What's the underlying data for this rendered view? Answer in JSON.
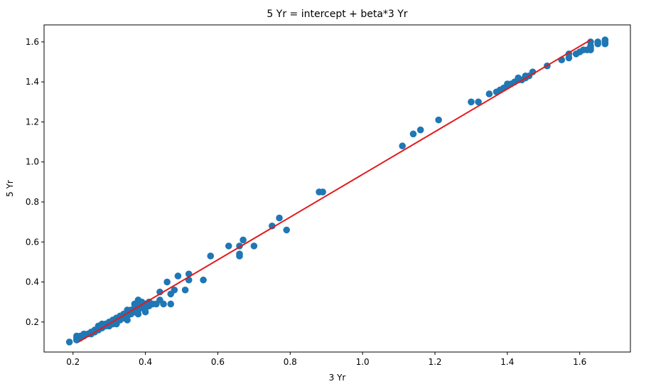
{
  "chart_data": {
    "type": "scatter",
    "title": "5 Yr = intercept + beta*3 Yr",
    "xlabel": "3 Yr",
    "ylabel": "5 Yr",
    "xlim": [
      0.12,
      1.74
    ],
    "ylim": [
      0.05,
      1.685
    ],
    "xticks": [
      0.2,
      0.4,
      0.6,
      0.8,
      1.0,
      1.2,
      1.4,
      1.6
    ],
    "xtick_labels": [
      "0.2",
      "0.4",
      "0.6",
      "0.8",
      "1.0",
      "1.2",
      "1.4",
      "1.6"
    ],
    "yticks": [
      0.2,
      0.4,
      0.6,
      0.8,
      1.0,
      1.2,
      1.4,
      1.6
    ],
    "ytick_labels": [
      "0.2",
      "0.4",
      "0.6",
      "0.8",
      "1.0",
      "1.2",
      "1.4",
      "1.6"
    ],
    "grid": false,
    "scatter_color": "#1f77b4",
    "fit_color": "#e31a1c",
    "points": [
      [
        0.19,
        0.1
      ],
      [
        0.21,
        0.11
      ],
      [
        0.21,
        0.12
      ],
      [
        0.21,
        0.13
      ],
      [
        0.22,
        0.12
      ],
      [
        0.22,
        0.13
      ],
      [
        0.23,
        0.13
      ],
      [
        0.23,
        0.14
      ],
      [
        0.24,
        0.14
      ],
      [
        0.25,
        0.14
      ],
      [
        0.25,
        0.15
      ],
      [
        0.26,
        0.15
      ],
      [
        0.26,
        0.16
      ],
      [
        0.27,
        0.16
      ],
      [
        0.27,
        0.17
      ],
      [
        0.27,
        0.18
      ],
      [
        0.28,
        0.17
      ],
      [
        0.28,
        0.18
      ],
      [
        0.28,
        0.19
      ],
      [
        0.29,
        0.18
      ],
      [
        0.29,
        0.19
      ],
      [
        0.3,
        0.18
      ],
      [
        0.3,
        0.19
      ],
      [
        0.3,
        0.2
      ],
      [
        0.31,
        0.19
      ],
      [
        0.31,
        0.2
      ],
      [
        0.31,
        0.21
      ],
      [
        0.32,
        0.19
      ],
      [
        0.32,
        0.21
      ],
      [
        0.32,
        0.22
      ],
      [
        0.33,
        0.21
      ],
      [
        0.33,
        0.22
      ],
      [
        0.33,
        0.23
      ],
      [
        0.34,
        0.22
      ],
      [
        0.34,
        0.23
      ],
      [
        0.34,
        0.24
      ],
      [
        0.35,
        0.21
      ],
      [
        0.35,
        0.23
      ],
      [
        0.35,
        0.24
      ],
      [
        0.35,
        0.25
      ],
      [
        0.35,
        0.26
      ],
      [
        0.36,
        0.24
      ],
      [
        0.36,
        0.25
      ],
      [
        0.36,
        0.26
      ],
      [
        0.37,
        0.25
      ],
      [
        0.37,
        0.26
      ],
      [
        0.37,
        0.27
      ],
      [
        0.37,
        0.29
      ],
      [
        0.38,
        0.24
      ],
      [
        0.38,
        0.26
      ],
      [
        0.38,
        0.28
      ],
      [
        0.38,
        0.29
      ],
      [
        0.38,
        0.31
      ],
      [
        0.39,
        0.27
      ],
      [
        0.39,
        0.3
      ],
      [
        0.4,
        0.25
      ],
      [
        0.4,
        0.27
      ],
      [
        0.4,
        0.29
      ],
      [
        0.41,
        0.28
      ],
      [
        0.41,
        0.3
      ],
      [
        0.42,
        0.29
      ],
      [
        0.43,
        0.29
      ],
      [
        0.44,
        0.31
      ],
      [
        0.44,
        0.35
      ],
      [
        0.45,
        0.29
      ],
      [
        0.46,
        0.4
      ],
      [
        0.47,
        0.29
      ],
      [
        0.47,
        0.34
      ],
      [
        0.48,
        0.36
      ],
      [
        0.49,
        0.43
      ],
      [
        0.51,
        0.36
      ],
      [
        0.52,
        0.41
      ],
      [
        0.52,
        0.44
      ],
      [
        0.56,
        0.41
      ],
      [
        0.58,
        0.53
      ],
      [
        0.63,
        0.58
      ],
      [
        0.66,
        0.53
      ],
      [
        0.66,
        0.54
      ],
      [
        0.66,
        0.58
      ],
      [
        0.67,
        0.61
      ],
      [
        0.7,
        0.58
      ],
      [
        0.75,
        0.68
      ],
      [
        0.77,
        0.72
      ],
      [
        0.79,
        0.66
      ],
      [
        0.88,
        0.85
      ],
      [
        0.89,
        0.85
      ],
      [
        1.11,
        1.08
      ],
      [
        1.14,
        1.14
      ],
      [
        1.16,
        1.16
      ],
      [
        1.21,
        1.21
      ],
      [
        1.3,
        1.3
      ],
      [
        1.32,
        1.3
      ],
      [
        1.35,
        1.34
      ],
      [
        1.37,
        1.35
      ],
      [
        1.38,
        1.36
      ],
      [
        1.39,
        1.37
      ],
      [
        1.4,
        1.38
      ],
      [
        1.4,
        1.39
      ],
      [
        1.41,
        1.39
      ],
      [
        1.42,
        1.4
      ],
      [
        1.43,
        1.41
      ],
      [
        1.43,
        1.42
      ],
      [
        1.44,
        1.41
      ],
      [
        1.45,
        1.42
      ],
      [
        1.45,
        1.43
      ],
      [
        1.46,
        1.43
      ],
      [
        1.47,
        1.45
      ],
      [
        1.51,
        1.48
      ],
      [
        1.55,
        1.51
      ],
      [
        1.57,
        1.52
      ],
      [
        1.57,
        1.54
      ],
      [
        1.59,
        1.54
      ],
      [
        1.6,
        1.55
      ],
      [
        1.61,
        1.56
      ],
      [
        1.62,
        1.56
      ],
      [
        1.63,
        1.56
      ],
      [
        1.63,
        1.57
      ],
      [
        1.63,
        1.58
      ],
      [
        1.63,
        1.6
      ],
      [
        1.65,
        1.59
      ],
      [
        1.65,
        1.6
      ],
      [
        1.67,
        1.59
      ],
      [
        1.67,
        1.6
      ],
      [
        1.67,
        1.61
      ]
    ],
    "fit_line": {
      "x": [
        0.215,
        1.63
      ],
      "y": [
        0.1,
        1.61
      ]
    }
  }
}
